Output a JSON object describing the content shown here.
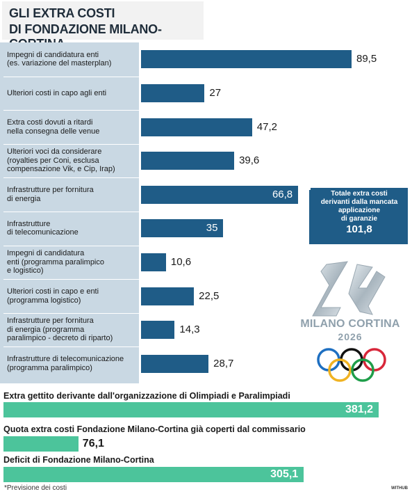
{
  "title": [
    "GLI EXTRA COSTI",
    "DI FONDAZIONE MILANO-CORTINA"
  ],
  "chart_data": [
    {
      "type": "bar",
      "orientation": "horizontal",
      "categories": [
        [
          "Impegni di candidatura enti",
          "(es. variazione del masterplan)"
        ],
        [
          "Ulteriori costi in capo agli enti"
        ],
        [
          "Extra costi dovuti a ritardi",
          "nella consegna delle venue"
        ],
        [
          "Ulteriori voci da considerare",
          "(royalties per Coni, esclusa",
          "compensazione Vik, e Cip, Irap)"
        ],
        [
          "Infrastrutture per fornitura",
          "di energia"
        ],
        [
          "Infrastrutture",
          "di telecomunicazione"
        ],
        [
          "Impegni di candidatura",
          "enti (programma paralimpico",
          "e logistico)"
        ],
        [
          "Ulteriori costi in capo e enti",
          "(programma logistico)"
        ],
        [
          "Infrastrutture per fornitura",
          "di energia (programma",
          "paralimpico - decreto di riparto)"
        ],
        [
          "Infrastrutture di telecomunicazione",
          "(programma paralimpico)"
        ]
      ],
      "values": [
        89.5,
        27,
        47.2,
        39.6,
        66.8,
        35,
        10.6,
        22.5,
        14.3,
        28.7
      ],
      "value_labels": [
        "89,5",
        "27",
        "47,2",
        "39,6",
        "66,8",
        "35",
        "10,6",
        "22,5",
        "14,3",
        "28,7"
      ],
      "total": {
        "label": [
          "Totale extra costi",
          "derivanti  dalla mancata",
          "applicazione",
          "di garanzie"
        ],
        "value": 101.8,
        "value_label": "101,8",
        "applies_to": [
          4,
          5
        ]
      },
      "bar_color": "#1f5c87"
    },
    {
      "type": "bar",
      "orientation": "horizontal",
      "categories": [
        "Extra gettito derivante dall'organizzazione di Olimpiadi e Paralimpiadi",
        "Quota extra costi Fondazione Milano-Cortina già coperti dal commissario",
        "Deficit di Fondazione Milano-Cortina"
      ],
      "values": [
        381.2,
        76.1,
        305.1
      ],
      "value_labels": [
        "381,2",
        "76,1",
        "305,1"
      ],
      "bar_color": "#4cc49b"
    }
  ],
  "logo": {
    "name": "MILANO CORTINA",
    "year": "2026"
  },
  "footnote": "*Previsione dei costi",
  "credit": "WITHUB"
}
